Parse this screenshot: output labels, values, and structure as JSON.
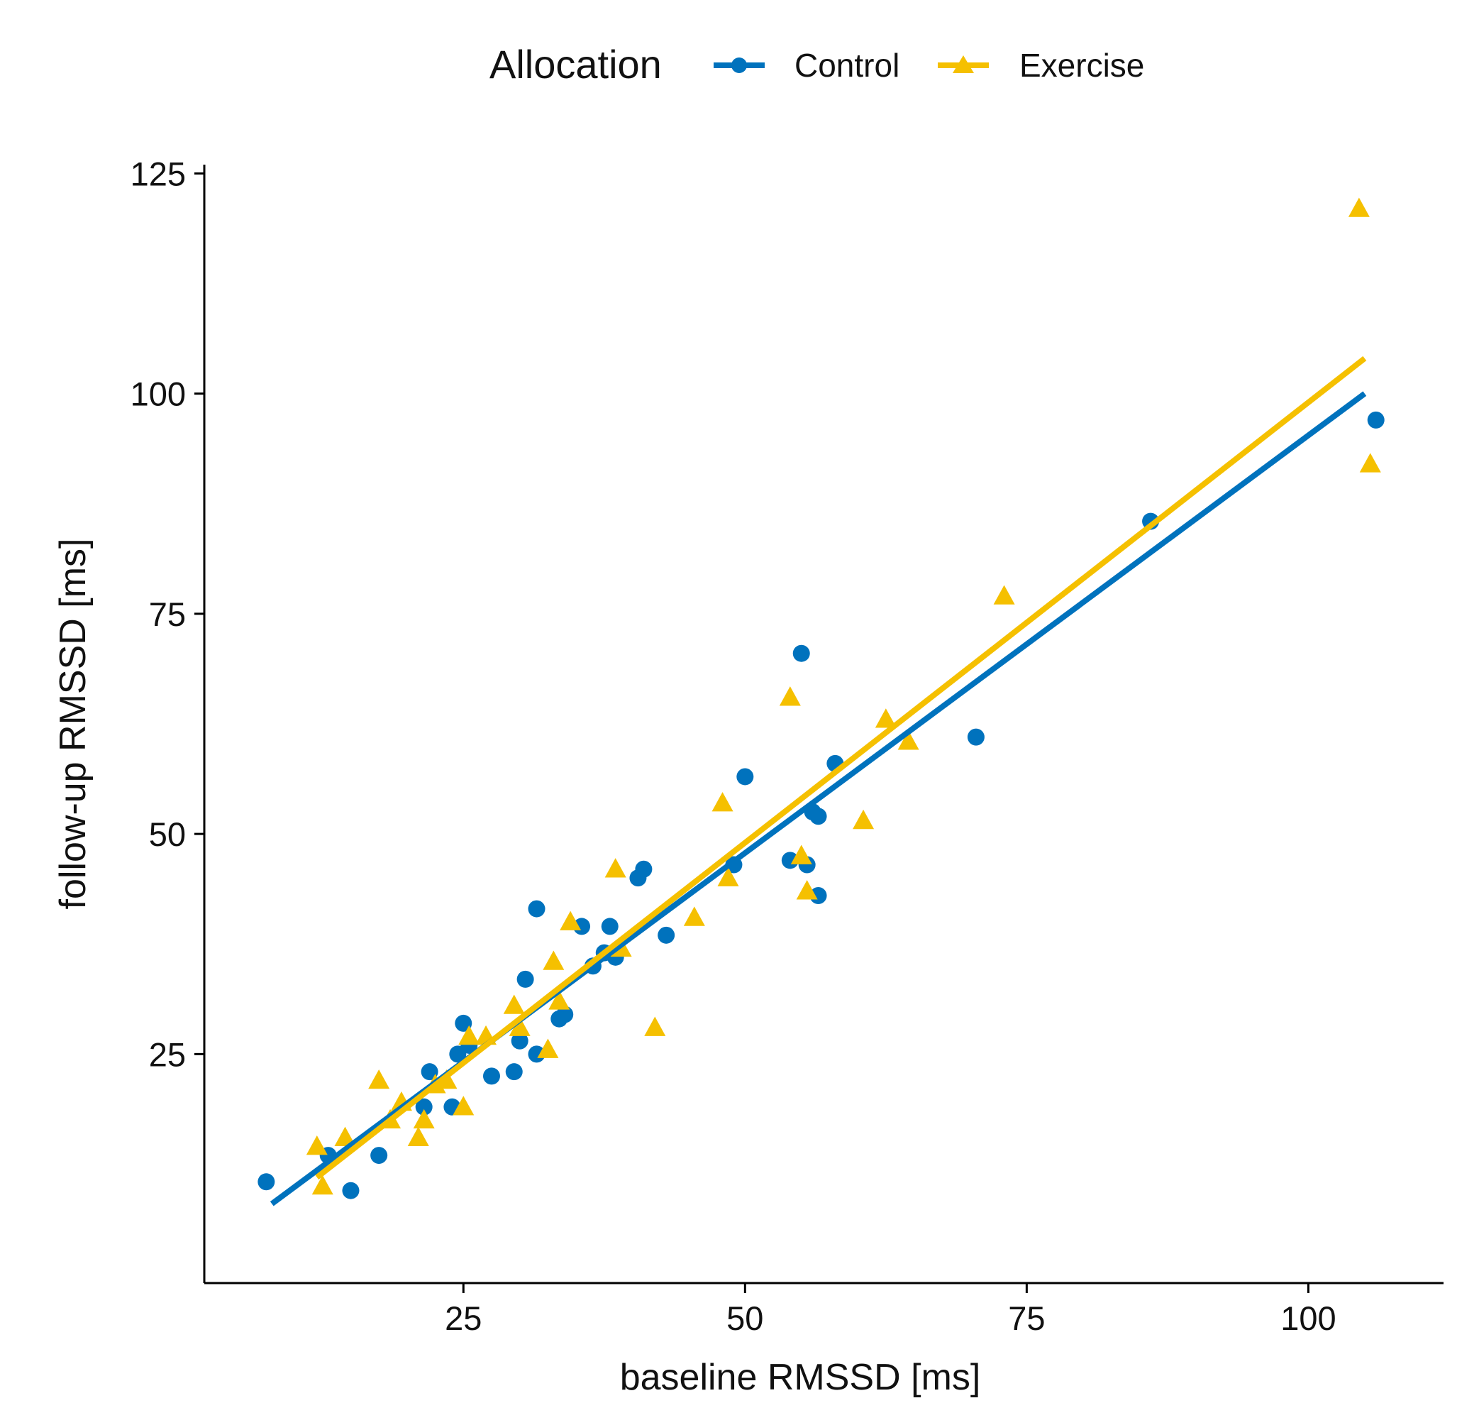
{
  "chart_data": {
    "type": "scatter",
    "title": "",
    "xlabel": "baseline RMSSD [ms]",
    "ylabel": "follow-up RMSSD [ms]",
    "xlim": [
      2,
      112
    ],
    "ylim": [
      -1,
      126
    ],
    "x_ticks": [
      25,
      50,
      75,
      100
    ],
    "y_ticks": [
      25,
      50,
      75,
      100,
      125
    ],
    "grid": false,
    "legend": {
      "title": "Allocation",
      "position": "top"
    },
    "series": [
      {
        "name": "Control",
        "color": "#0072BD",
        "marker": "circle",
        "points": [
          [
            7.5,
            10.5
          ],
          [
            13,
            13.5
          ],
          [
            15,
            9.5
          ],
          [
            17.5,
            13.5
          ],
          [
            21.5,
            19
          ],
          [
            22,
            23
          ],
          [
            24,
            19
          ],
          [
            24.5,
            25
          ],
          [
            25,
            28.5
          ],
          [
            25.5,
            26
          ],
          [
            27.5,
            22.5
          ],
          [
            29.5,
            23
          ],
          [
            30,
            26.5
          ],
          [
            30.5,
            33.5
          ],
          [
            31.5,
            25
          ],
          [
            31.5,
            41.5
          ],
          [
            33.5,
            29
          ],
          [
            34,
            29.5
          ],
          [
            35.5,
            39.5
          ],
          [
            36.5,
            35
          ],
          [
            37.5,
            36.5
          ],
          [
            38,
            39.5
          ],
          [
            38.5,
            36
          ],
          [
            40.5,
            45
          ],
          [
            41,
            46
          ],
          [
            43,
            38.5
          ],
          [
            49,
            46.5
          ],
          [
            50,
            56.5
          ],
          [
            54,
            47
          ],
          [
            55,
            70.5
          ],
          [
            55.5,
            46.5
          ],
          [
            56,
            52.5
          ],
          [
            56.5,
            52
          ],
          [
            56.5,
            43
          ],
          [
            58,
            58
          ],
          [
            70.5,
            61
          ],
          [
            86,
            85.5
          ],
          [
            106,
            97
          ]
        ],
        "fit": [
          [
            8,
            8
          ],
          [
            105,
            100
          ]
        ]
      },
      {
        "name": "Exercise",
        "color": "#F5C000",
        "marker": "triangle",
        "points": [
          [
            12,
            14.5
          ],
          [
            12.5,
            10
          ],
          [
            14.5,
            15.5
          ],
          [
            17.5,
            22
          ],
          [
            18.5,
            17.5
          ],
          [
            19.5,
            19.5
          ],
          [
            21,
            15.5
          ],
          [
            21.5,
            17.5
          ],
          [
            22.5,
            21.5
          ],
          [
            23.5,
            22
          ],
          [
            25,
            19
          ],
          [
            25.5,
            27
          ],
          [
            27,
            27
          ],
          [
            29.5,
            30.5
          ],
          [
            30,
            28
          ],
          [
            32.5,
            25.5
          ],
          [
            33,
            35.5
          ],
          [
            33.5,
            31
          ],
          [
            34.5,
            40
          ],
          [
            38.5,
            46
          ],
          [
            39,
            37
          ],
          [
            42,
            28
          ],
          [
            45.5,
            40.5
          ],
          [
            48,
            53.5
          ],
          [
            48.5,
            45
          ],
          [
            54,
            65.5
          ],
          [
            55,
            47.5
          ],
          [
            55.5,
            43.5
          ],
          [
            60.5,
            51.5
          ],
          [
            62.5,
            63
          ],
          [
            64.5,
            60.5
          ],
          [
            73,
            77
          ],
          [
            104.5,
            121
          ],
          [
            105.5,
            92
          ]
        ],
        "fit": [
          [
            12,
            11
          ],
          [
            105,
            104
          ]
        ]
      }
    ]
  }
}
